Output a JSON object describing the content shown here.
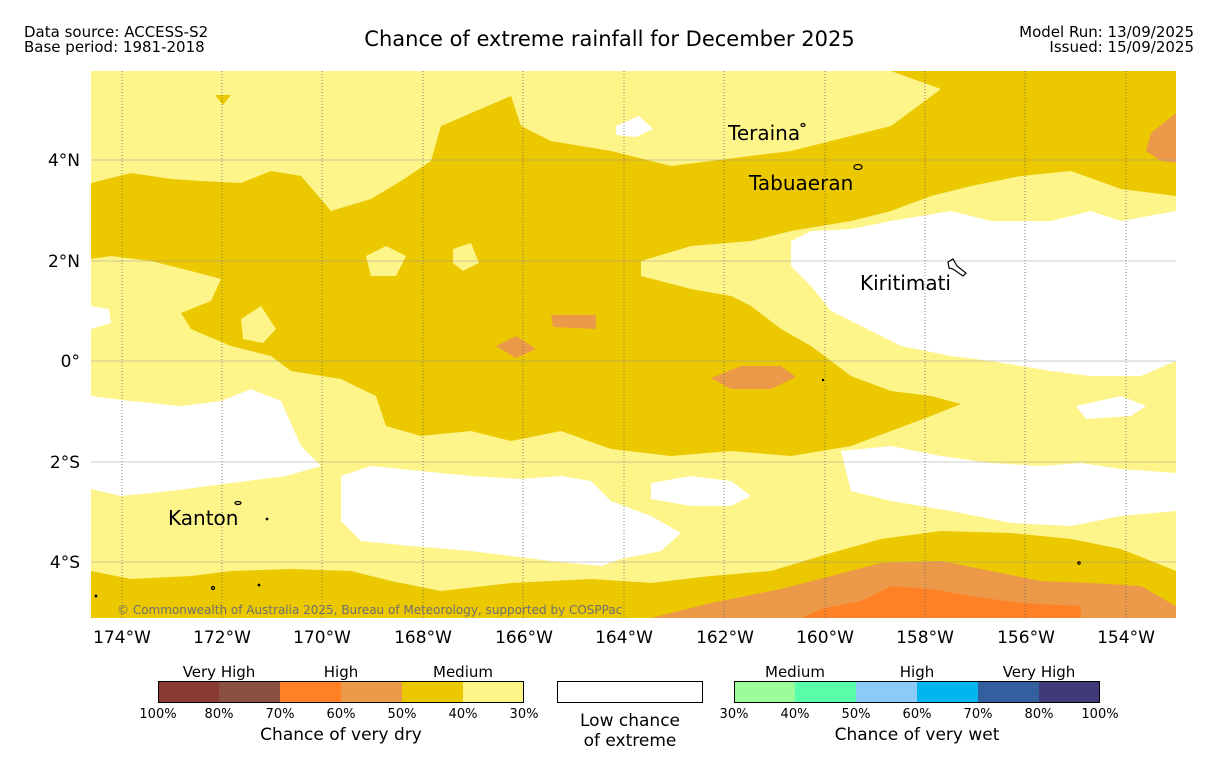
{
  "header": {
    "data_source": "Data source: ACCESS-S2",
    "base_period": "Base period: 1981-2018",
    "title": "Chance of extreme rainfall for December 2025",
    "model_run": "Model Run: 13/09/2025",
    "issued": "Issued: 15/09/2025"
  },
  "map": {
    "lon_labels": [
      "174°W",
      "172°W",
      "170°W",
      "168°W",
      "166°W",
      "164°W",
      "162°W",
      "160°W",
      "158°W",
      "156°W",
      "154°W"
    ],
    "lat_labels": [
      "4°N",
      "2°N",
      "0°",
      "2°S",
      "4°S"
    ],
    "places": [
      "Teraina",
      "Tabuaeran",
      "Kiritimati",
      "Kanton"
    ],
    "copyright": "© Commonwealth of Australia 2025, Bureau of Meteorology, supported by COSPPac"
  },
  "legend": {
    "dry": {
      "categories": [
        "Very High",
        "High",
        "Medium"
      ],
      "ticks": [
        "100%",
        "80%",
        "70%",
        "60%",
        "50%",
        "40%",
        "30%"
      ],
      "colors": [
        "#8b3a33",
        "#8a4f3e",
        "#ff8126",
        "#ec9a4a",
        "#ecc800",
        "#fdf48a"
      ],
      "title": "Chance of very dry"
    },
    "low": {
      "line1": "Low chance",
      "line2": "of extreme",
      "color": "#ffffff"
    },
    "wet": {
      "categories": [
        "Medium",
        "High",
        "Very High"
      ],
      "ticks": [
        "30%",
        "40%",
        "50%",
        "60%",
        "70%",
        "80%",
        "100%"
      ],
      "colors": [
        "#9cfc9c",
        "#59fca9",
        "#8acbf7",
        "#00b4ee",
        "#345f9e",
        "#3f3a78"
      ],
      "title": "Chance of very wet"
    }
  }
}
